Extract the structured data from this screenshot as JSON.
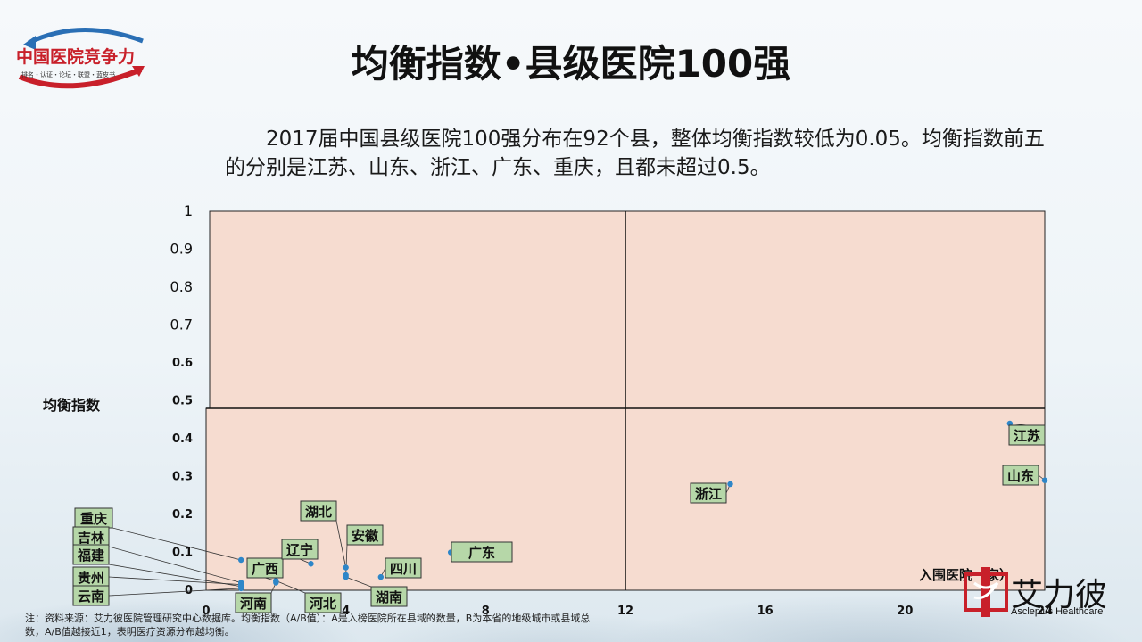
{
  "slide": {
    "title": "均衡指数•县级医院100强",
    "intro": "2017届中国县级医院100强分布在92个县，整体均衡指数较低为0.05。均衡指数前五的分别是江苏、山东、浙江、广东、重庆，且都未超过0.5。",
    "note": "注：资料来源：艾力彼医院管理研究中心数据库。均衡指数（A/B值）：A是入榜医院所在县域的数量，B为本省的地级城市或县域总数，A/B值越接近1，表明医疗资源分布越均衡。"
  },
  "logo": {
    "main_text": "中国医院竞争力",
    "sub_text": "排名・认证・论坛・联盟・蓝皮书",
    "colors": {
      "red": "#c8202a",
      "blue": "#2a6fb5"
    }
  },
  "brand": {
    "name": "艾力彼",
    "english": "Asclepius Healthcare",
    "color": "#c8202a"
  },
  "colors": {
    "plot_bg": "#f6dcd0",
    "label_bg": "#b6d7a8",
    "point": "#2e86c8"
  },
  "chart_data": {
    "type": "scatter",
    "xlabel": "入围医院（家）",
    "ylabel": "均衡指数",
    "xlim": [
      0,
      24
    ],
    "ylim": [
      0,
      1
    ],
    "x_ticks": [
      "0",
      "4",
      "8",
      "12",
      "16",
      "20",
      "24"
    ],
    "y_ticks": [
      "0",
      "0.1",
      "0.2",
      "0.3",
      "0.4",
      "0.5",
      "0.6",
      "0.7",
      "0.8",
      "0.9",
      "1"
    ],
    "quadrant_lines": {
      "x": 12,
      "y": 0.48
    },
    "grid": false,
    "points": [
      {
        "name": "江苏",
        "x": 23.0,
        "y": 0.44
      },
      {
        "name": "山东",
        "x": 24.0,
        "y": 0.29
      },
      {
        "name": "浙江",
        "x": 15.0,
        "y": 0.28
      },
      {
        "name": "广东",
        "x": 7.0,
        "y": 0.1
      },
      {
        "name": "重庆",
        "x": 1.0,
        "y": 0.08
      },
      {
        "name": "吉林",
        "x": 1.0,
        "y": 0.02
      },
      {
        "name": "福建",
        "x": 1.0,
        "y": 0.01
      },
      {
        "name": "贵州",
        "x": 1.0,
        "y": 0.015
      },
      {
        "name": "云南",
        "x": 1.0,
        "y": 0.005
      },
      {
        "name": "广西",
        "x": 2.0,
        "y": 0.025
      },
      {
        "name": "河南",
        "x": 2.0,
        "y": 0.02
      },
      {
        "name": "辽宁",
        "x": 3.0,
        "y": 0.07
      },
      {
        "name": "河北",
        "x": 2.0,
        "y": 0.025
      },
      {
        "name": "湖北",
        "x": 4.0,
        "y": 0.06
      },
      {
        "name": "安徽",
        "x": 4.0,
        "y": 0.04
      },
      {
        "name": "湖南",
        "x": 4.0,
        "y": 0.035
      },
      {
        "name": "四川",
        "x": 5.0,
        "y": 0.035
      }
    ]
  }
}
